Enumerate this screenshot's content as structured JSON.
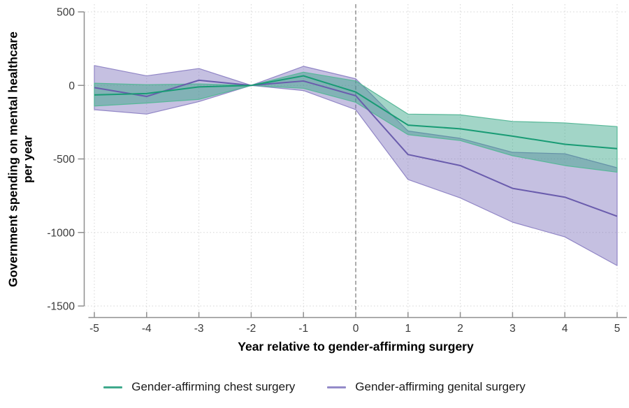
{
  "chart_data": {
    "type": "line",
    "title": "",
    "xlabel": "Year relative to gender-affirming surgery",
    "ylabel_line1": "Government spending on mental healthcare",
    "ylabel_line2": "per year",
    "xlim": [
      -5,
      5
    ],
    "ylim": [
      -1500,
      500
    ],
    "xticks": [
      -5,
      -4,
      -3,
      -2,
      -1,
      0,
      1,
      2,
      3,
      4,
      5
    ],
    "yticks": [
      500,
      0,
      -500,
      -1000,
      -1500
    ],
    "grid": "dotted-both-axes",
    "reference_line_x": 0,
    "legend_position": "bottom",
    "x": [
      -5,
      -4,
      -3,
      -2,
      -1,
      0,
      1,
      2,
      3,
      4,
      5
    ],
    "series": [
      {
        "name": "Gender-affirming chest surgery",
        "line_color": "#189b74",
        "band_fill_rgba": "rgba(49,161,131,0.45)",
        "band_edge_color": "#57b898",
        "legend_swatch_color": "#3fa98c",
        "values": [
          -65,
          -55,
          -10,
          0,
          65,
          -45,
          -270,
          -295,
          -345,
          -400,
          -430
        ],
        "ci_upper": [
          15,
          5,
          10,
          0,
          90,
          30,
          -195,
          -200,
          -245,
          -255,
          -280
        ],
        "ci_lower": [
          -140,
          -120,
          -95,
          0,
          -20,
          -115,
          -335,
          -375,
          -478,
          -545,
          -590
        ]
      },
      {
        "name": "Gender-affirming genital surgery",
        "line_color": "#6a5cad",
        "band_fill_rgba": "rgba(127,116,189,0.45)",
        "band_edge_color": "#9186c6",
        "legend_swatch_color": "#948bc9",
        "values": [
          -15,
          -75,
          35,
          0,
          30,
          -70,
          -470,
          -545,
          -700,
          -760,
          -890
        ],
        "ci_upper": [
          135,
          65,
          115,
          0,
          130,
          45,
          -310,
          -360,
          -455,
          -465,
          -560
        ],
        "ci_lower": [
          -165,
          -195,
          -110,
          0,
          -35,
          -165,
          -640,
          -765,
          -930,
          -1030,
          -1225
        ]
      }
    ]
  },
  "colors": {
    "grid": "#d4d4d4",
    "axis": "#8f8f8f",
    "tick_label": "#3a3a3a",
    "reference_line": "#888888",
    "background": "#ffffff"
  }
}
